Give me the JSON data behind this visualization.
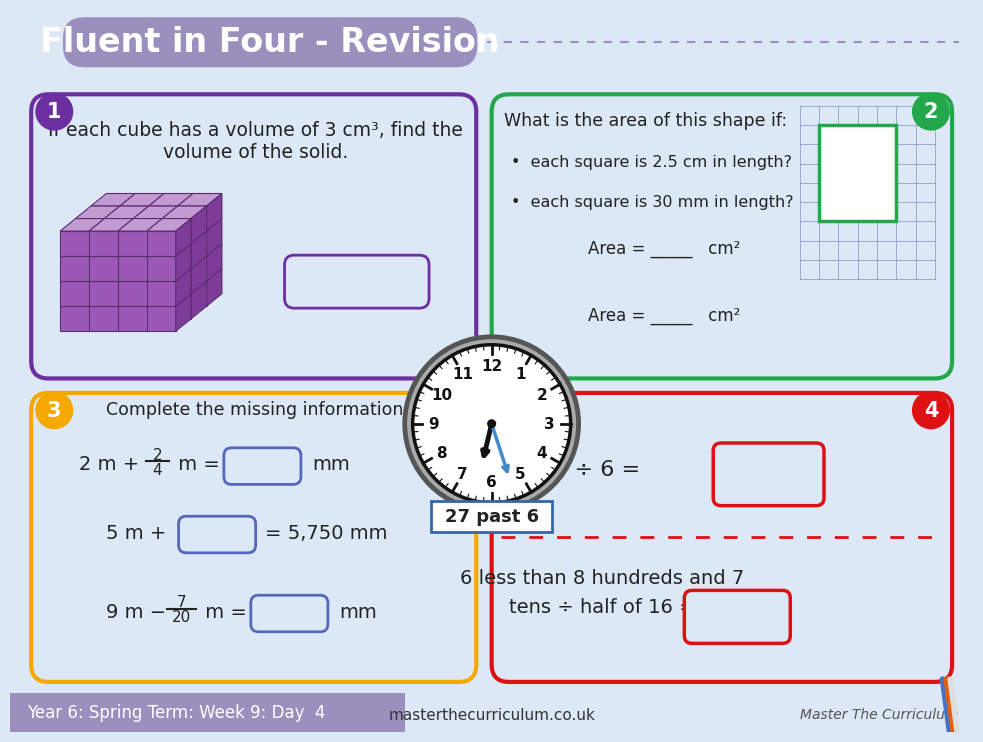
{
  "title": "Fluent in Four - Revision",
  "title_bg": "#9b8fbe",
  "background_color": "#dce8f5",
  "footer_text": "Year 6: Spring Term: Week 9: Day  4",
  "footer_bg": "#9b8fbe",
  "website": "masterthecurriculum.co.uk",
  "brand": "Master The Curriculum",
  "box1_color": "#6b2fa0",
  "box2_color": "#22a84a",
  "box3_color": "#f5a800",
  "box4_color": "#dd1111",
  "clock_label": "27 past 6",
  "q1_line1": "If each cube has a volume of 3 cm³, find the",
  "q1_line2": "volume of the solid.",
  "q2_header": "What is the area of this shape if:",
  "q2_b1": "•  each square is 2.5 cm in length?",
  "q2_b2": "•  each square is 30 mm in length?",
  "q2_area1": "Area = _____   cm²",
  "q2_area2": "Area = _____   cm²",
  "q3_header": "Complete the missing information.",
  "q4_div": "144 ÷ 6 =",
  "q4_b1": "6 less than 8 hundreds and 7",
  "q4_b2": "tens ÷ half of 16 =",
  "cube_face": "#9b59b6",
  "cube_top": "#c39bd3",
  "cube_side": "#7d3c98",
  "cube_edge": "#5b2c6f",
  "answer_box_color": "#5566bb",
  "grid_color": "#99aacc"
}
